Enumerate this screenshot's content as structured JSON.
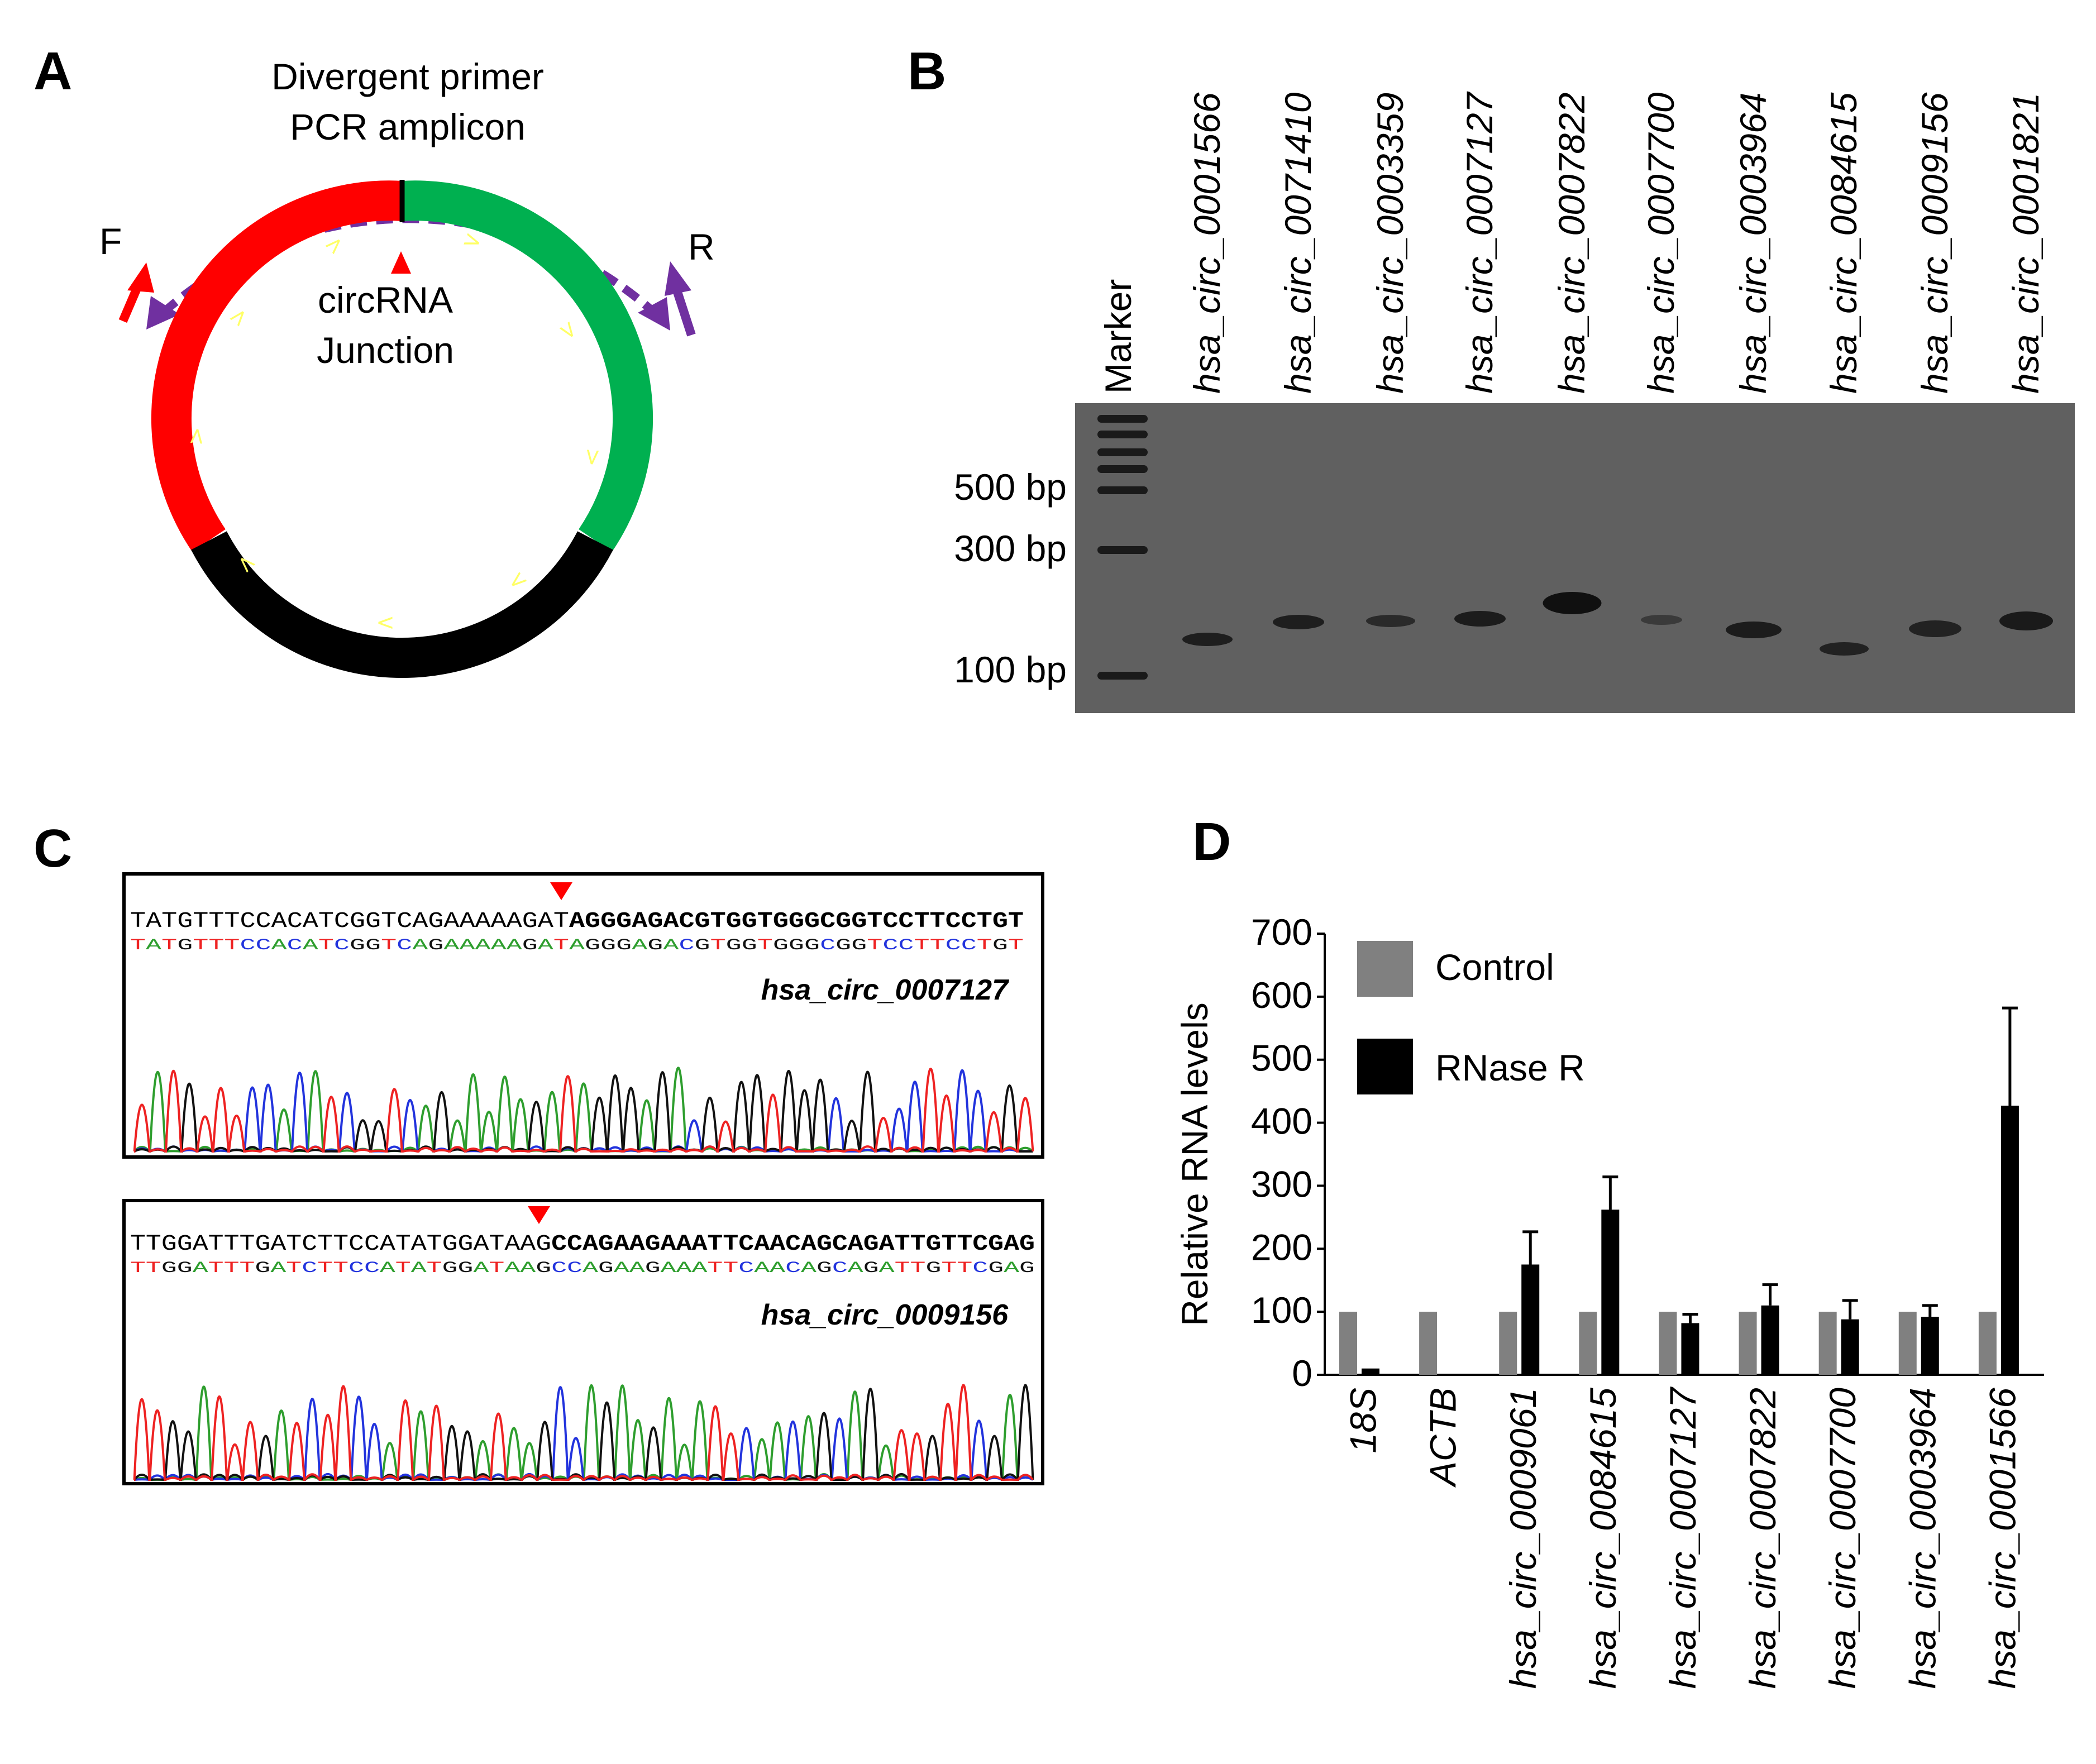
{
  "panels": {
    "a": "A",
    "b": "B",
    "c": "C",
    "d": "D"
  },
  "panel_a": {
    "title_line1": "Divergent primer",
    "title_line2": "PCR amplicon",
    "forward": "F",
    "reverse": "R",
    "junction_line1": "circRNA",
    "junction_line2": "Junction",
    "arrow_glyph": "<",
    "colors": {
      "red": "#ff0000",
      "green": "#00b050",
      "black": "#000000",
      "purple": "#7030a0",
      "arrow": "#ffff66"
    }
  },
  "panel_b": {
    "marker_label": "Marker",
    "lanes": [
      "hsa_circ_0001566",
      "hsa_circ_0071410",
      "hsa_circ_0003359",
      "hsa_circ_0007127",
      "hsa_circ_0007822",
      "hsa_circ_0007700",
      "hsa_circ_0003964",
      "hsa_circ_0084615",
      "hsa_circ_0009156",
      "hsa_circ_0001821"
    ],
    "sizes": [
      "500 bp",
      "300 bp",
      "100 bp"
    ],
    "gel_color": "#606060"
  },
  "panel_c": {
    "trace1": {
      "seq_plain": "TATGTTTCCACATCGGTCAGAAAAAGAT",
      "seq_bold": "AGGGAGACGTGGTGGGCGGTCCTTCCTGT",
      "seq_colored": "TATGTTTCCACATCGGTCAGAAAAAGATAGGGAGACGTGGTGGGCGGTCCTTCCTGT",
      "name": "hsa_circ_0007127"
    },
    "trace2": {
      "seq_plain": "TTGGATTTGATCTTCCATATGGATAAG",
      "seq_bold": "CCAGAAGAAATTCAACAGCAGATTGTTCGAG",
      "seq_colored": "TTGGATTTGATCTTCCATATGGATAAGCCAGAAGAAATTCAACAGCAGATTGTTCGAG",
      "name": "hsa_circ_0009156"
    },
    "base_colors": {
      "A": "#2e9e2e",
      "C": "#2233dd",
      "G": "#111111",
      "T": "#ee2222"
    }
  },
  "chart_data": {
    "type": "bar",
    "title": "",
    "xlabel": "",
    "ylabel": "Relative RNA levels",
    "ylim": [
      0,
      700
    ],
    "yticks": [
      "0",
      "100",
      "200",
      "300",
      "400",
      "500",
      "600",
      "700"
    ],
    "categories": [
      "18S",
      "ACTB",
      "hsa_circ_0009061",
      "hsa_circ_0084615",
      "hsa_circ_0007127",
      "hsa_circ_0007822",
      "hsa_circ_0007700",
      "hsa_circ_0003964",
      "hsa_circ_0001566"
    ],
    "series": [
      {
        "name": "Control",
        "color": "#808080",
        "values": [
          100,
          100,
          100,
          100,
          100,
          100,
          100,
          100,
          100
        ]
      },
      {
        "name": "RNase R",
        "color": "#000000",
        "values": [
          10,
          0,
          175,
          262,
          82,
          110,
          88,
          92,
          427
        ],
        "errors": [
          0,
          0,
          52,
          52,
          14,
          33,
          30,
          18,
          155
        ]
      }
    ],
    "legend_position": "top-left"
  }
}
